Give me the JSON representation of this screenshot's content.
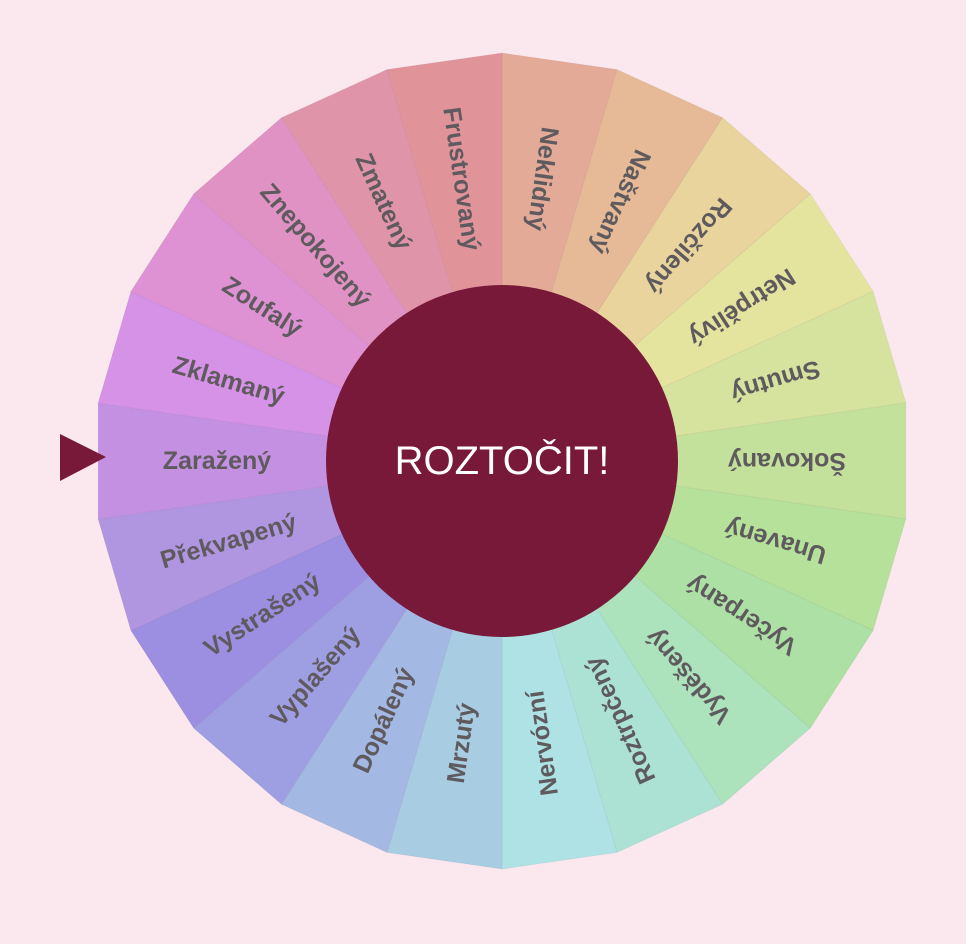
{
  "wheel": {
    "spin_label": "ROZTOČIT!",
    "pointer_color": "#78193a",
    "center_color": "#78193a",
    "label_color": "#5f5a5e",
    "segments": [
      {
        "label": "Neklidný",
        "color": "#e4aa98"
      },
      {
        "label": "Naštvaný",
        "color": "#e6ba96"
      },
      {
        "label": "Rozčilený",
        "color": "#e8d49c"
      },
      {
        "label": "Netrpělivý",
        "color": "#e4e49e"
      },
      {
        "label": "Smutný",
        "color": "#d5e39e"
      },
      {
        "label": "Šokovaný",
        "color": "#c4e19c"
      },
      {
        "label": "Unavený",
        "color": "#b5e19a"
      },
      {
        "label": "Vyčerpaný",
        "color": "#ace0a4"
      },
      {
        "label": "Vyděšený",
        "color": "#ace2bc"
      },
      {
        "label": "Roztrpčený",
        "color": "#ace2d4"
      },
      {
        "label": "Nervózní",
        "color": "#aee2e4"
      },
      {
        "label": "Mrzutý",
        "color": "#a8cce2"
      },
      {
        "label": "Dopálený",
        "color": "#a4b8e4"
      },
      {
        "label": "Vyplašený",
        "color": "#9e9ee2"
      },
      {
        "label": "Vystrašený",
        "color": "#9c8ee0"
      },
      {
        "label": "Překvapený",
        "color": "#b096e0"
      },
      {
        "label": "Zaražený",
        "color": "#c490e2"
      },
      {
        "label": "Zklamaný",
        "color": "#d692e6"
      },
      {
        "label": "Zoufalý",
        "color": "#de92d4"
      },
      {
        "label": "Znepokojený",
        "color": "#e092c4"
      },
      {
        "label": "Zmatený",
        "color": "#e094aa"
      },
      {
        "label": "Frustrovaný",
        "color": "#e0949a"
      }
    ]
  }
}
